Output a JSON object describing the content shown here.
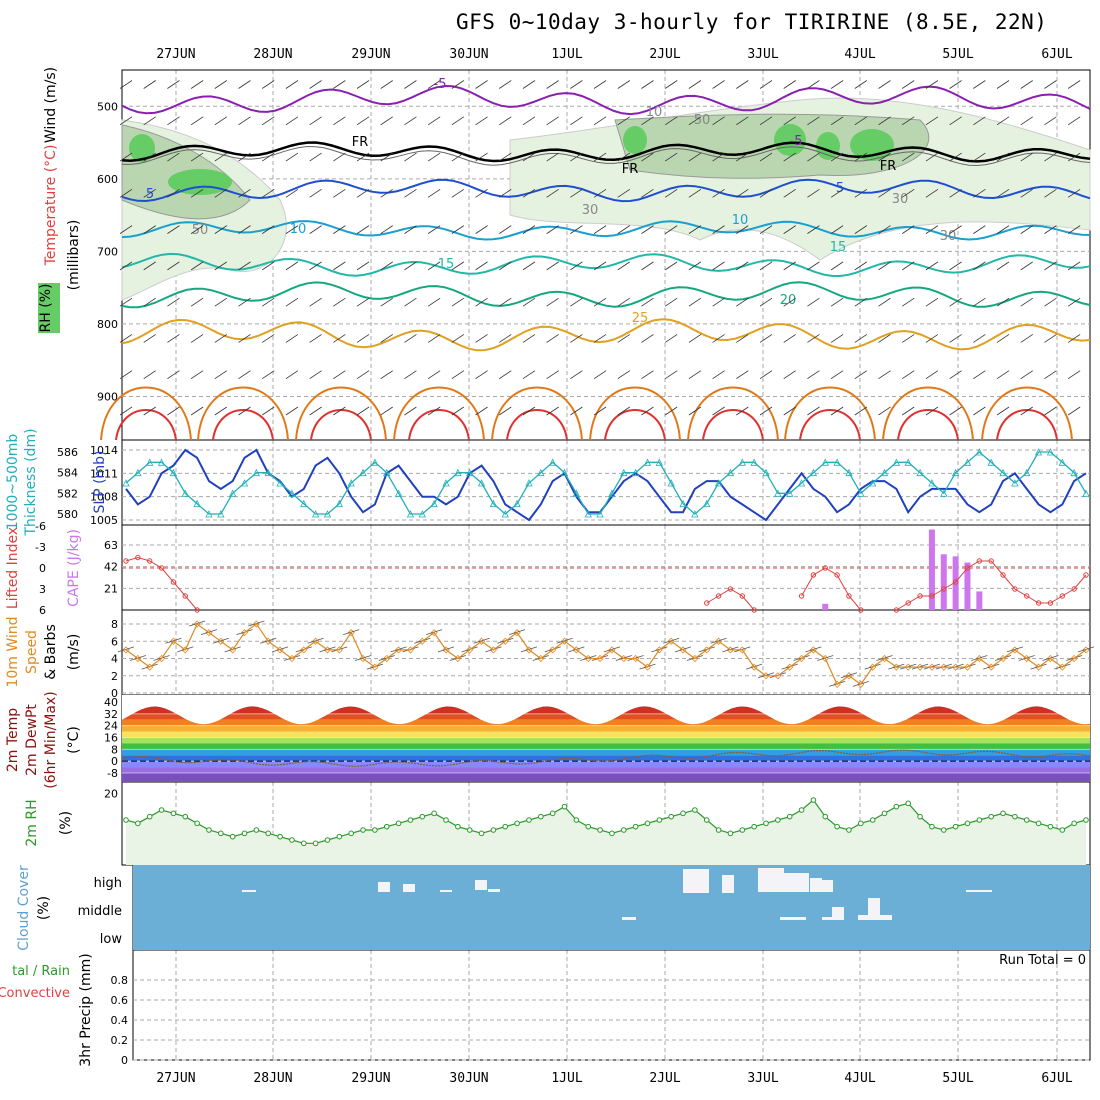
{
  "title": "GFS 0~10day 3-hourly for TIRIRINE (8.5E, 22N)",
  "dates": [
    "27JUN",
    "28JUN",
    "29JUN",
    "30JUN",
    "1JUL",
    "2JUL",
    "3JUL",
    "4JUL",
    "5JUL",
    "6JUL"
  ],
  "colors": {
    "grid": "#aaaaaa",
    "rh_fill_light": "#e6f2e0",
    "rh_fill_mid": "#b9d6b0",
    "rh_fill_dark": "#66cc66",
    "slp": "#2040c0",
    "thickness": "#20b0b8",
    "lifted": "#e04040",
    "cape": "#cc77ee",
    "wind": "#e08a20",
    "cloud_bg": "#6baed6",
    "rh2m": "#2a9a2a",
    "rh2m_fill": "#eaf4e6",
    "temp_hot": "#8b1010"
  },
  "panels": {
    "upper": {
      "ylabel_wind": "Wind (m/s)",
      "ylabel_temp": "Temperature (°C)",
      "ylabel_rh": "RH (%)",
      "ylabel_p": "(millibars)",
      "ticks": [
        "500",
        "600",
        "700",
        "800",
        "900"
      ],
      "contour_labels": [
        "-5",
        "-5",
        "FR",
        "FR",
        "FR",
        "5",
        "5",
        "10",
        "10",
        "15",
        "15",
        "20",
        "25",
        "50",
        "30",
        "30",
        "10",
        "50",
        "30"
      ]
    },
    "slp": {
      "ylabel_left1": "1000~500mb",
      "ylabel_left2": "Thickness (dm)",
      "ylabel_right": "SLP (mb)",
      "ticks_left": [
        "586",
        "584",
        "582",
        "580"
      ],
      "ticks_right": [
        "1014",
        "1011",
        "1008",
        "1005"
      ]
    },
    "cape": {
      "ylabel_left": "Lifted Index",
      "ylabel_right": "CAPE (J/kg)",
      "ticks_left": [
        "-6",
        "-3",
        "0",
        "3",
        "6"
      ],
      "ticks_right": [
        "63",
        "42",
        "21"
      ]
    },
    "wind10": {
      "ylabel1": "10m Wind",
      "ylabel2": "Speed",
      "ylabel3": "& Barbs",
      "unit": "(m/s)",
      "ticks": [
        "8",
        "6",
        "4",
        "2",
        "0"
      ]
    },
    "temp2m": {
      "ylabel1": "2m Temp",
      "ylabel2": "2m DewPt",
      "ylabel3": "(6hr Min/Max)",
      "unit": "(°C)",
      "ticks": [
        "40",
        "32",
        "24",
        "16",
        "8",
        "0",
        "-8"
      ]
    },
    "rh2m": {
      "ylabel": "2m RH",
      "unit": "(%)",
      "ticks": [
        "20"
      ]
    },
    "cloud": {
      "ylabel1": "Cloud Cover",
      "unit": "(%)",
      "levels": [
        "high",
        "middle",
        "low"
      ]
    },
    "precip": {
      "ylabel1": "tal / Rain",
      "ylabel2": "Convective",
      "ylabel3": "3hr Precip (mm)",
      "ticks": [
        "0.8",
        "0.6",
        "0.4",
        "0.2",
        "0"
      ],
      "run_total": "Run Total = 0"
    }
  },
  "chart_data": [
    {
      "type": "line",
      "title": "1000~500mb Thickness (dm) and SLP (mb)",
      "series": [
        {
          "name": "SLP (mb)",
          "values": [
            1009,
            1007,
            1008,
            1011,
            1012,
            1014,
            1013,
            1010,
            1009,
            1010,
            1013,
            1014,
            1011,
            1010,
            1008,
            1009,
            1012,
            1013,
            1011,
            1008,
            1006,
            1007,
            1011,
            1012,
            1010,
            1008,
            1008,
            1007,
            1008,
            1011,
            1012,
            1010,
            1007,
            1006,
            1005,
            1007,
            1010,
            1011,
            1008,
            1006,
            1006,
            1008,
            1010,
            1011,
            1010,
            1008,
            1006,
            1006,
            1009,
            1010,
            1010,
            1008,
            1007,
            1006,
            1005,
            1007,
            1009,
            1011,
            1009,
            1008,
            1006,
            1007,
            1009,
            1010,
            1010,
            1009,
            1006,
            1008,
            1009,
            1009,
            1009,
            1007,
            1006,
            1007,
            1010,
            1011,
            1009,
            1007,
            1006,
            1007,
            1010,
            1011
          ]
        },
        {
          "name": "1000~500mb Thickness (dm)",
          "values": [
            583,
            584,
            585,
            585,
            584,
            582,
            581,
            580,
            580,
            582,
            583,
            584,
            584,
            583,
            582,
            581,
            580,
            580,
            581,
            583,
            584,
            585,
            584,
            582,
            580,
            580,
            581,
            583,
            584,
            584,
            583,
            581,
            580,
            581,
            583,
            584,
            585,
            584,
            582,
            580,
            580,
            582,
            584,
            584,
            585,
            585,
            583,
            581,
            580,
            581,
            583,
            584,
            585,
            585,
            584,
            582,
            582,
            583,
            584,
            585,
            585,
            584,
            582,
            583,
            584,
            585,
            585,
            584,
            583,
            582,
            584,
            585,
            586,
            585,
            584,
            583,
            584,
            586,
            586,
            585,
            584,
            582
          ]
        }
      ]
    },
    {
      "type": "bar",
      "title": "CAPE (J/kg)",
      "values_note_days": "3JUL-4JUL",
      "series": [
        {
          "name": "CAPE",
          "values": [
            0,
            0,
            0,
            0,
            0,
            0,
            0,
            0,
            0,
            0,
            0,
            0,
            0,
            0,
            0,
            0,
            0,
            0,
            0,
            0,
            0,
            0,
            0,
            0,
            0,
            0,
            0,
            0,
            0,
            0,
            0,
            0,
            0,
            0,
            0,
            0,
            0,
            0,
            0,
            0,
            0,
            0,
            0,
            0,
            0,
            0,
            0,
            0,
            0,
            0,
            0,
            0,
            0,
            0,
            0,
            0,
            0,
            0,
            0,
            6,
            0,
            0,
            0,
            0,
            0,
            0,
            0,
            0,
            78,
            54,
            52,
            46,
            18,
            0,
            0,
            0,
            0,
            0,
            0,
            0,
            0,
            0
          ]
        }
      ]
    },
    {
      "type": "line",
      "title": "Lifted Index",
      "series": [
        {
          "name": "Lifted Index",
          "values": [
            -1,
            -1.5,
            -1,
            0,
            2,
            4,
            6,
            7,
            7,
            7,
            7,
            7,
            7,
            7,
            7,
            7,
            7,
            7,
            7,
            7,
            7,
            7,
            7,
            7,
            7,
            7,
            7,
            7,
            7,
            7,
            7,
            7,
            7,
            7,
            7,
            7,
            7,
            7,
            7,
            7,
            7,
            7,
            7,
            7,
            7,
            7,
            7,
            7,
            7,
            5,
            4,
            3,
            4,
            6,
            7,
            7,
            7,
            4,
            1,
            0,
            1,
            4,
            6,
            7,
            7,
            6,
            5,
            4,
            4,
            3,
            2,
            0,
            -1,
            -1,
            1,
            3,
            4,
            5,
            5,
            4,
            3,
            1
          ]
        }
      ]
    },
    {
      "type": "line",
      "title": "10m Wind Speed (m/s)",
      "series": [
        {
          "name": "Speed",
          "values": [
            5,
            4,
            3,
            4,
            6,
            5,
            8,
            7,
            6,
            5,
            7,
            8,
            6,
            5,
            4,
            5,
            6,
            5,
            5,
            7,
            4,
            3,
            4,
            5,
            5,
            6,
            7,
            5,
            4,
            5,
            6,
            5,
            6,
            7,
            5,
            4,
            5,
            6,
            5,
            4,
            4,
            5,
            4,
            4,
            3,
            5,
            6,
            5,
            4,
            5,
            6,
            5,
            5,
            3,
            2,
            2,
            3,
            4,
            5,
            4,
            1,
            2,
            1,
            3,
            4,
            3,
            3,
            3,
            3,
            3,
            3,
            3,
            4,
            3,
            4,
            5,
            4,
            3,
            4,
            3,
            4,
            5
          ]
        }
      ]
    },
    {
      "type": "area",
      "title": "2m RH (%)",
      "series": [
        {
          "name": "2m RH",
          "values": [
            12,
            11,
            13,
            15,
            14,
            13,
            11,
            9,
            8,
            7,
            8,
            9,
            8,
            7,
            6,
            5,
            5,
            6,
            7,
            8,
            9,
            9,
            10,
            11,
            12,
            13,
            14,
            12,
            10,
            9,
            8,
            9,
            10,
            11,
            12,
            13,
            14,
            16,
            12,
            10,
            9,
            8,
            9,
            10,
            11,
            12,
            13,
            14,
            15,
            12,
            9,
            8,
            9,
            10,
            11,
            12,
            13,
            15,
            18,
            13,
            10,
            9,
            11,
            12,
            14,
            16,
            17,
            13,
            10,
            9,
            10,
            11,
            12,
            13,
            14,
            13,
            12,
            11,
            10,
            9,
            11,
            12
          ]
        }
      ]
    },
    {
      "type": "heatmap",
      "title": "Cloud Cover (%)",
      "note": "high-level cloud around 2JUL-4JUL, middle-level around 3JUL-4JUL"
    }
  ]
}
